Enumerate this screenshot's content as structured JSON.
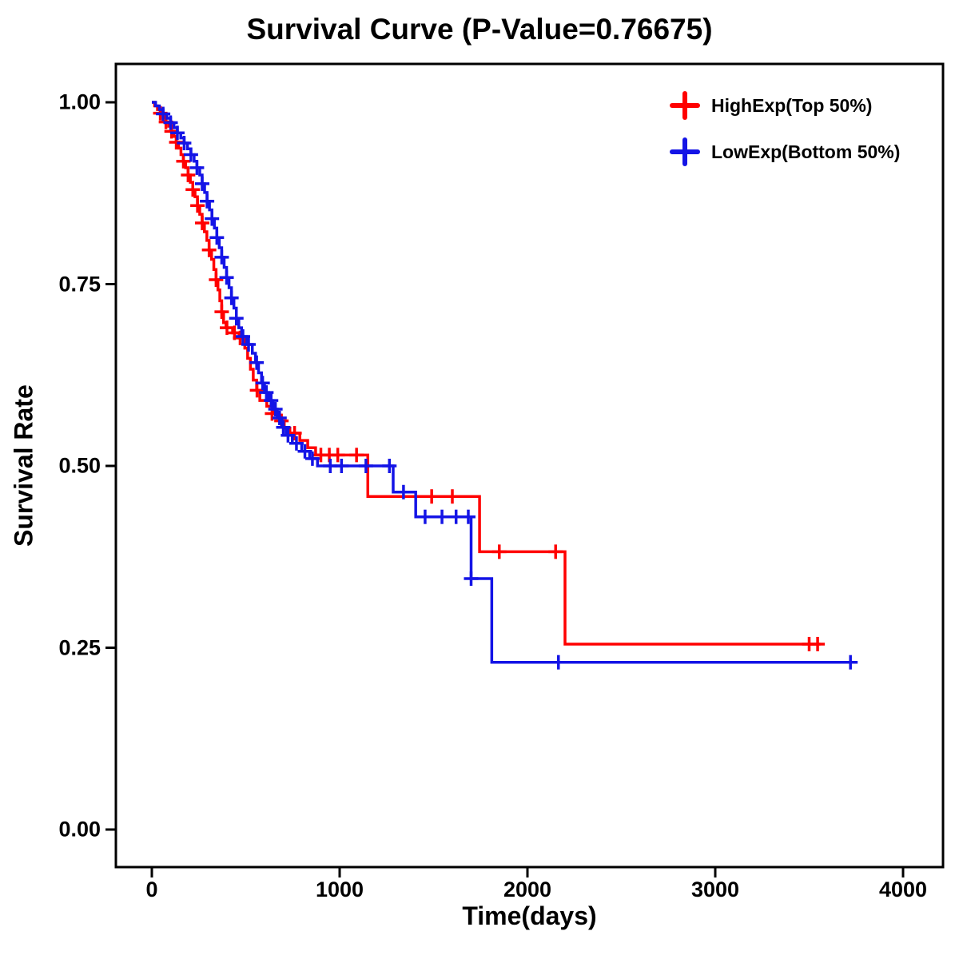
{
  "chart_data": {
    "type": "line",
    "chart_kind": "kaplan-meier-step",
    "title": "Survival Curve (P-Value=0.76675)",
    "xlabel": "Time(days)",
    "ylabel": "Survival Rate",
    "xlim": [
      0,
      4000
    ],
    "ylim": [
      0,
      1
    ],
    "x_ticks": [
      0,
      1000,
      2000,
      3000,
      4000
    ],
    "x_tick_labels": [
      "0",
      "1000",
      "2000",
      "3000",
      "4000"
    ],
    "y_ticks": [
      0,
      0.25,
      0.5,
      0.75,
      1
    ],
    "y_tick_labels": [
      "0.00",
      "0.25",
      "0.50",
      "0.75",
      "1.00"
    ],
    "grid": false,
    "legend_position": "top-right-inside",
    "axis_color": "#000000",
    "series": [
      {
        "name": "HighExp(Top 50%)",
        "color": "#FF0000",
        "end_time": 3560,
        "steps": [
          [
            0,
            1.0
          ],
          [
            15,
            0.995
          ],
          [
            30,
            0.99
          ],
          [
            45,
            0.985
          ],
          [
            60,
            0.979
          ],
          [
            75,
            0.973
          ],
          [
            90,
            0.967
          ],
          [
            105,
            0.96
          ],
          [
            118,
            0.953
          ],
          [
            130,
            0.945
          ],
          [
            142,
            0.937
          ],
          [
            155,
            0.928
          ],
          [
            168,
            0.919
          ],
          [
            180,
            0.91
          ],
          [
            193,
            0.9
          ],
          [
            205,
            0.89
          ],
          [
            218,
            0.88
          ],
          [
            230,
            0.87
          ],
          [
            243,
            0.858
          ],
          [
            255,
            0.846
          ],
          [
            268,
            0.834
          ],
          [
            280,
            0.822
          ],
          [
            293,
            0.81
          ],
          [
            305,
            0.797
          ],
          [
            318,
            0.784
          ],
          [
            330,
            0.77
          ],
          [
            342,
            0.756
          ],
          [
            352,
            0.742
          ],
          [
            362,
            0.727
          ],
          [
            372,
            0.712
          ],
          [
            382,
            0.697
          ],
          [
            395,
            0.69
          ],
          [
            430,
            0.683
          ],
          [
            465,
            0.676
          ],
          [
            495,
            0.662
          ],
          [
            510,
            0.648
          ],
          [
            525,
            0.633
          ],
          [
            540,
            0.618
          ],
          [
            558,
            0.604
          ],
          [
            575,
            0.59
          ],
          [
            612,
            0.582
          ],
          [
            650,
            0.572
          ],
          [
            680,
            0.562
          ],
          [
            705,
            0.552
          ],
          [
            735,
            0.545
          ],
          [
            788,
            0.535
          ],
          [
            830,
            0.525
          ],
          [
            872,
            0.515
          ],
          [
            1150,
            0.458
          ],
          [
            1745,
            0.382
          ],
          [
            2200,
            0.255
          ]
        ],
        "censors": [
          [
            45,
            0.985
          ],
          [
            75,
            0.973
          ],
          [
            105,
            0.96
          ],
          [
            130,
            0.945
          ],
          [
            168,
            0.919
          ],
          [
            193,
            0.9
          ],
          [
            218,
            0.88
          ],
          [
            243,
            0.858
          ],
          [
            268,
            0.834
          ],
          [
            305,
            0.797
          ],
          [
            342,
            0.756
          ],
          [
            372,
            0.712
          ],
          [
            400,
            0.69
          ],
          [
            440,
            0.683
          ],
          [
            470,
            0.676
          ],
          [
            560,
            0.604
          ],
          [
            640,
            0.572
          ],
          [
            690,
            0.562
          ],
          [
            760,
            0.545
          ],
          [
            900,
            0.515
          ],
          [
            945,
            0.515
          ],
          [
            990,
            0.515
          ],
          [
            1090,
            0.515
          ],
          [
            1490,
            0.458
          ],
          [
            1600,
            0.458
          ],
          [
            1850,
            0.382
          ],
          [
            2150,
            0.382
          ],
          [
            3500,
            0.255
          ],
          [
            3545,
            0.255
          ]
        ]
      },
      {
        "name": "LowExp(Bottom 50%)",
        "color": "#1414E6",
        "end_time": 3720,
        "steps": [
          [
            0,
            1.0
          ],
          [
            20,
            0.995
          ],
          [
            40,
            0.99
          ],
          [
            60,
            0.984
          ],
          [
            80,
            0.978
          ],
          [
            100,
            0.972
          ],
          [
            118,
            0.965
          ],
          [
            136,
            0.958
          ],
          [
            154,
            0.951
          ],
          [
            172,
            0.944
          ],
          [
            190,
            0.936
          ],
          [
            208,
            0.928
          ],
          [
            225,
            0.919
          ],
          [
            240,
            0.91
          ],
          [
            255,
            0.9
          ],
          [
            268,
            0.888
          ],
          [
            281,
            0.876
          ],
          [
            294,
            0.864
          ],
          [
            307,
            0.852
          ],
          [
            320,
            0.84
          ],
          [
            333,
            0.827
          ],
          [
            346,
            0.814
          ],
          [
            359,
            0.8
          ],
          [
            372,
            0.787
          ],
          [
            385,
            0.773
          ],
          [
            398,
            0.759
          ],
          [
            411,
            0.745
          ],
          [
            424,
            0.731
          ],
          [
            437,
            0.717
          ],
          [
            450,
            0.703
          ],
          [
            463,
            0.69
          ],
          [
            478,
            0.678
          ],
          [
            505,
            0.667
          ],
          [
            535,
            0.655
          ],
          [
            552,
            0.642
          ],
          [
            568,
            0.628
          ],
          [
            584,
            0.614
          ],
          [
            600,
            0.601
          ],
          [
            622,
            0.59
          ],
          [
            645,
            0.578
          ],
          [
            668,
            0.566
          ],
          [
            692,
            0.553
          ],
          [
            715,
            0.542
          ],
          [
            748,
            0.531
          ],
          [
            798,
            0.52
          ],
          [
            840,
            0.51
          ],
          [
            882,
            0.5
          ],
          [
            1285,
            0.464
          ],
          [
            1405,
            0.43
          ],
          [
            1700,
            0.345
          ],
          [
            1810,
            0.23
          ]
        ],
        "censors": [
          [
            60,
            0.984
          ],
          [
            100,
            0.972
          ],
          [
            136,
            0.958
          ],
          [
            172,
            0.944
          ],
          [
            208,
            0.928
          ],
          [
            240,
            0.91
          ],
          [
            268,
            0.888
          ],
          [
            294,
            0.864
          ],
          [
            320,
            0.84
          ],
          [
            346,
            0.814
          ],
          [
            372,
            0.787
          ],
          [
            398,
            0.759
          ],
          [
            424,
            0.731
          ],
          [
            450,
            0.703
          ],
          [
            485,
            0.678
          ],
          [
            515,
            0.667
          ],
          [
            558,
            0.642
          ],
          [
            590,
            0.614
          ],
          [
            610,
            0.601
          ],
          [
            635,
            0.59
          ],
          [
            658,
            0.578
          ],
          [
            680,
            0.566
          ],
          [
            700,
            0.553
          ],
          [
            725,
            0.542
          ],
          [
            770,
            0.531
          ],
          [
            815,
            0.52
          ],
          [
            855,
            0.51
          ],
          [
            950,
            0.5
          ],
          [
            1010,
            0.5
          ],
          [
            1140,
            0.5
          ],
          [
            1265,
            0.5
          ],
          [
            1340,
            0.464
          ],
          [
            1455,
            0.43
          ],
          [
            1545,
            0.43
          ],
          [
            1620,
            0.43
          ],
          [
            1685,
            0.43
          ],
          [
            1700,
            0.345
          ],
          [
            2165,
            0.23
          ],
          [
            3720,
            0.23
          ]
        ]
      }
    ]
  }
}
